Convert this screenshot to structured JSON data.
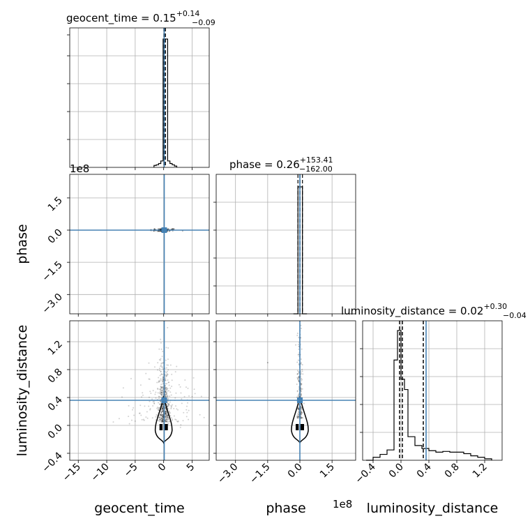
{
  "colors": {
    "truth": "#4682b4",
    "hist": "#000000",
    "grid": "#b0b0b0",
    "scatter": "#000000"
  },
  "titles": {
    "geocent_time": {
      "lhs": "geocent_time = 0.15",
      "sup": "+0.14",
      "sub": "−0.09"
    },
    "phase": {
      "lhs": "phase = 0.26",
      "sup": "+153.41",
      "sub": "−162.00"
    },
    "luminosity_distance": {
      "lhs": "luminosity_distance = 0.02",
      "sup": "+0.30",
      "sub": "−0.04"
    }
  },
  "offset_labels": {
    "phase_y": "1e8",
    "phase_x": "1e8"
  },
  "chart_data": {
    "type": "corner",
    "parameters": [
      "geocent_time",
      "phase",
      "luminosity_distance"
    ],
    "axis_labels": {
      "x": [
        "geocent_time",
        "phase",
        "luminosity_distance"
      ],
      "y": [
        "phase",
        "luminosity_distance"
      ]
    },
    "ranges": {
      "geocent_time": [
        -16.5,
        8
      ],
      "phase": [
        -390000000,
        260000000
      ],
      "luminosity_distance": [
        -0.5,
        1.5
      ]
    },
    "ticks": {
      "geocent_time": {
        "values": [
          -15,
          -10,
          -5,
          0,
          5
        ],
        "labels": [
          "−15",
          "−10",
          "−5",
          "0",
          "5"
        ]
      },
      "phase": {
        "values": [
          -300000000,
          -150000000,
          0,
          150000000
        ],
        "labels": [
          "−3.0",
          "−1.5",
          "0.0",
          "1.5"
        ]
      },
      "luminosity_distance": {
        "values": [
          -0.4,
          0.0,
          0.4,
          0.8,
          1.2
        ],
        "labels": [
          "−0.4",
          "0.0",
          "0.4",
          "0.8",
          "1.2"
        ]
      },
      "luminosity_distance_diag": {
        "values": [
          -0.4,
          0.0,
          0.4,
          0.8,
          1.2
        ],
        "labels": [
          "−0.4",
          "0.0",
          "0.4",
          "0.8",
          "1.2"
        ]
      }
    },
    "truths": {
      "geocent_time": 0.1,
      "phase": 0,
      "luminosity_distance": 0.36
    },
    "quantiles": {
      "geocent_time": [
        0.06,
        0.15,
        0.29
      ],
      "phase": [
        -161740000,
        260000,
        153670000
      ],
      "luminosity_distance": [
        -0.02,
        0.02,
        0.32
      ]
    },
    "histograms": {
      "geocent_time": {
        "bins": [
          -1.7,
          -1.3,
          -0.9,
          -0.5,
          -0.1,
          0.3,
          0.7,
          1.1,
          1.5,
          1.9,
          2.3
        ],
        "counts": [
          0.015,
          0.02,
          0.03,
          0.05,
          1.0,
          1.0,
          0.05,
          0.03,
          0.02,
          0.01
        ]
      },
      "phase": {
        "bins": [
          -30000000,
          -9000000,
          12000000,
          33000000
        ],
        "counts": [
          0.0,
          1.0,
          0.0
        ]
      },
      "luminosity_distance": {
        "bins": [
          -0.5,
          -0.4,
          -0.3,
          -0.2,
          -0.1,
          -0.05,
          0.0,
          0.05,
          0.1,
          0.2,
          0.3,
          0.4,
          0.5,
          0.6,
          0.7,
          0.8,
          0.9,
          1.0,
          1.1,
          1.2,
          1.3
        ],
        "counts": [
          0.0,
          0.02,
          0.04,
          0.07,
          0.68,
          0.88,
          0.55,
          0.48,
          0.16,
          0.1,
          0.08,
          0.065,
          0.055,
          0.06,
          0.055,
          0.055,
          0.045,
          0.03,
          0.02,
          0.01
        ]
      }
    },
    "contour_marker": {
      "x_geocent_time": 0.0,
      "x_phase": 0,
      "y_luminosity_distance": 0.0
    }
  }
}
